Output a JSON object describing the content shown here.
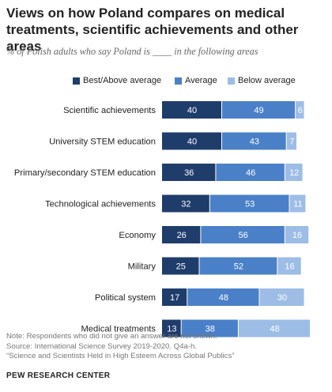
{
  "header": {
    "title": "Views on how Poland compares on medical treatments, scientific achievements and other areas",
    "subtitle": "% of Polish adults who say Poland is ____ in the following areas"
  },
  "legend": [
    {
      "label": "Best/Above average",
      "color": "#1f3d6b"
    },
    {
      "label": "Average",
      "color": "#4a80c8"
    },
    {
      "label": "Below average",
      "color": "#9dbde6"
    }
  ],
  "chart_data": {
    "type": "bar",
    "orientation": "horizontal",
    "stacked": true,
    "categories": [
      "Scientific achievements",
      "University STEM education",
      "Primary/secondary STEM education",
      "Technological achievements",
      "Economy",
      "Military",
      "Political system",
      "Medical treatments"
    ],
    "series": [
      {
        "name": "Best/Above average",
        "color": "#1f3d6b",
        "values": [
          40,
          40,
          36,
          32,
          26,
          25,
          17,
          13
        ]
      },
      {
        "name": "Average",
        "color": "#4a80c8",
        "values": [
          49,
          43,
          46,
          53,
          56,
          52,
          48,
          38
        ]
      },
      {
        "name": "Below average",
        "color": "#9dbde6",
        "values": [
          6,
          7,
          12,
          11,
          16,
          16,
          30,
          48
        ]
      }
    ],
    "xlim": [
      0,
      100
    ],
    "grid": false,
    "legend_position": "top"
  },
  "footer": {
    "note": "Note: Respondents who did not give an answer are not shown.",
    "source": "Source: International Science Survey 2019-2020. Q4a-h.",
    "report": "“Science and Scientists Held in High Esteem Across Global Publics”",
    "brand": "PEW RESEARCH CENTER"
  }
}
